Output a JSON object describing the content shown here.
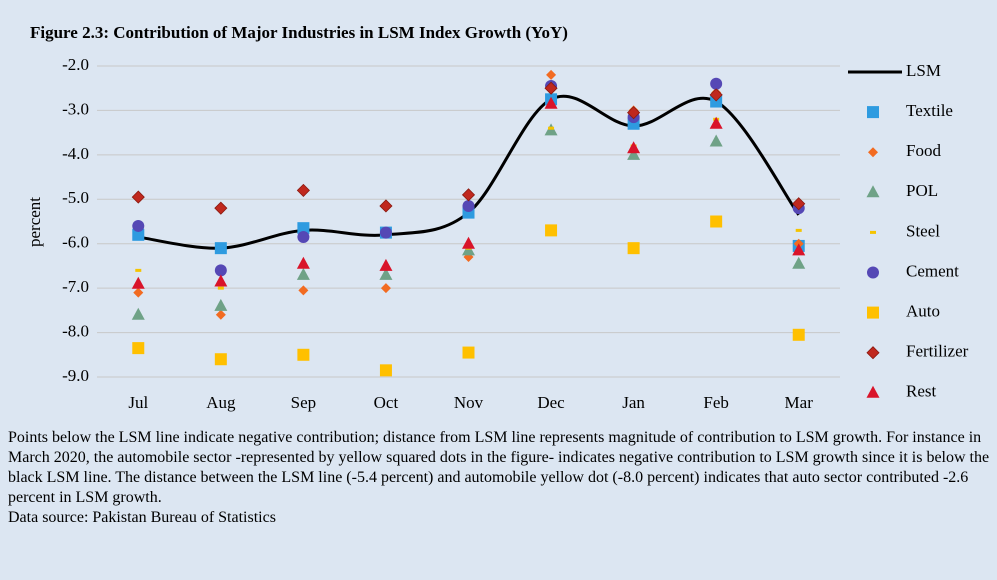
{
  "chart_data": {
    "type": "line",
    "title": "Figure 2.3: Contribution of Major Industries in LSM Index Growth (YoY)",
    "ylabel": "percent",
    "categories": [
      "Jul",
      "Aug",
      "Sep",
      "Oct",
      "Nov",
      "Dec",
      "Jan",
      "Feb",
      "Mar"
    ],
    "ylim": [
      -9,
      -2
    ],
    "yticks": [
      {
        "value": -2,
        "label": "-2.0"
      },
      {
        "value": -3,
        "label": "-3.0"
      },
      {
        "value": -4,
        "label": "-4.0"
      },
      {
        "value": -5,
        "label": "-5.0"
      },
      {
        "value": -6,
        "label": "-6.0"
      },
      {
        "value": -7,
        "label": "-7.0"
      },
      {
        "value": -8,
        "label": "-8.0"
      },
      {
        "value": -9,
        "label": "-9.0"
      }
    ],
    "grid": true,
    "legend": "right",
    "series": [
      {
        "name": "LSM",
        "color": "#000000",
        "marker": "none",
        "values": [
          -5.85,
          -6.1,
          -5.7,
          -5.8,
          -5.3,
          -2.75,
          -3.35,
          -2.8,
          -5.35
        ]
      },
      {
        "name": "Textile",
        "color": "#2e9be0",
        "marker": "square",
        "values": [
          -5.8,
          -6.1,
          -5.65,
          -5.75,
          -5.3,
          -2.75,
          -3.3,
          -2.8,
          -6.05
        ]
      },
      {
        "name": "Food",
        "color": "#f26b21",
        "marker": "diamond-small",
        "values": [
          -7.1,
          -7.6,
          -7.05,
          -7.0,
          -6.3,
          -2.2,
          -3.0,
          -2.6,
          -6.0
        ]
      },
      {
        "name": "POL",
        "color": "#6fa287",
        "marker": "triangle",
        "values": [
          -7.6,
          -7.4,
          -6.7,
          -6.7,
          -6.15,
          -3.45,
          -4.0,
          -3.7,
          -6.45
        ]
      },
      {
        "name": "Steel",
        "color": "#f5c400",
        "marker": "dash",
        "values": [
          -6.6,
          -7.0,
          -6.5,
          -6.55,
          -6.1,
          -3.4,
          -3.8,
          -3.2,
          -5.7
        ]
      },
      {
        "name": "Cement",
        "color": "#5548b5",
        "marker": "circle",
        "values": [
          -5.6,
          -6.6,
          -5.85,
          -5.75,
          -5.15,
          -2.45,
          -3.15,
          -2.4,
          -5.2
        ]
      },
      {
        "name": "Auto",
        "color": "#ffc000",
        "marker": "square",
        "values": [
          -8.35,
          -8.6,
          -8.5,
          -8.85,
          -8.45,
          -5.7,
          -6.1,
          -5.5,
          -8.05
        ]
      },
      {
        "name": "Fertilizer",
        "color": "#c0281e",
        "marker": "diamond",
        "values": [
          -4.95,
          -5.2,
          -4.8,
          -5.15,
          -4.9,
          -2.5,
          -3.05,
          -2.65,
          -5.1
        ]
      },
      {
        "name": "Rest",
        "color": "#d9142a",
        "marker": "triangle",
        "values": [
          -6.9,
          -6.85,
          -6.45,
          -6.5,
          -6.0,
          -2.85,
          -3.85,
          -3.3,
          -6.15
        ]
      }
    ]
  },
  "note": "Points below the LSM line indicate negative contribution; distance from LSM line represents magnitude of contribution to LSM growth. For instance in March 2020, the automobile sector -represented by yellow squared dots in the figure- indicates negative contribution to LSM growth since it is below the black LSM line. The distance between the LSM line (-5.4 percent) and automobile yellow dot (-8.0 percent) indicates that auto sector contributed -2.6 percent in LSM growth.",
  "source": "Data source: Pakistan Bureau of Statistics"
}
